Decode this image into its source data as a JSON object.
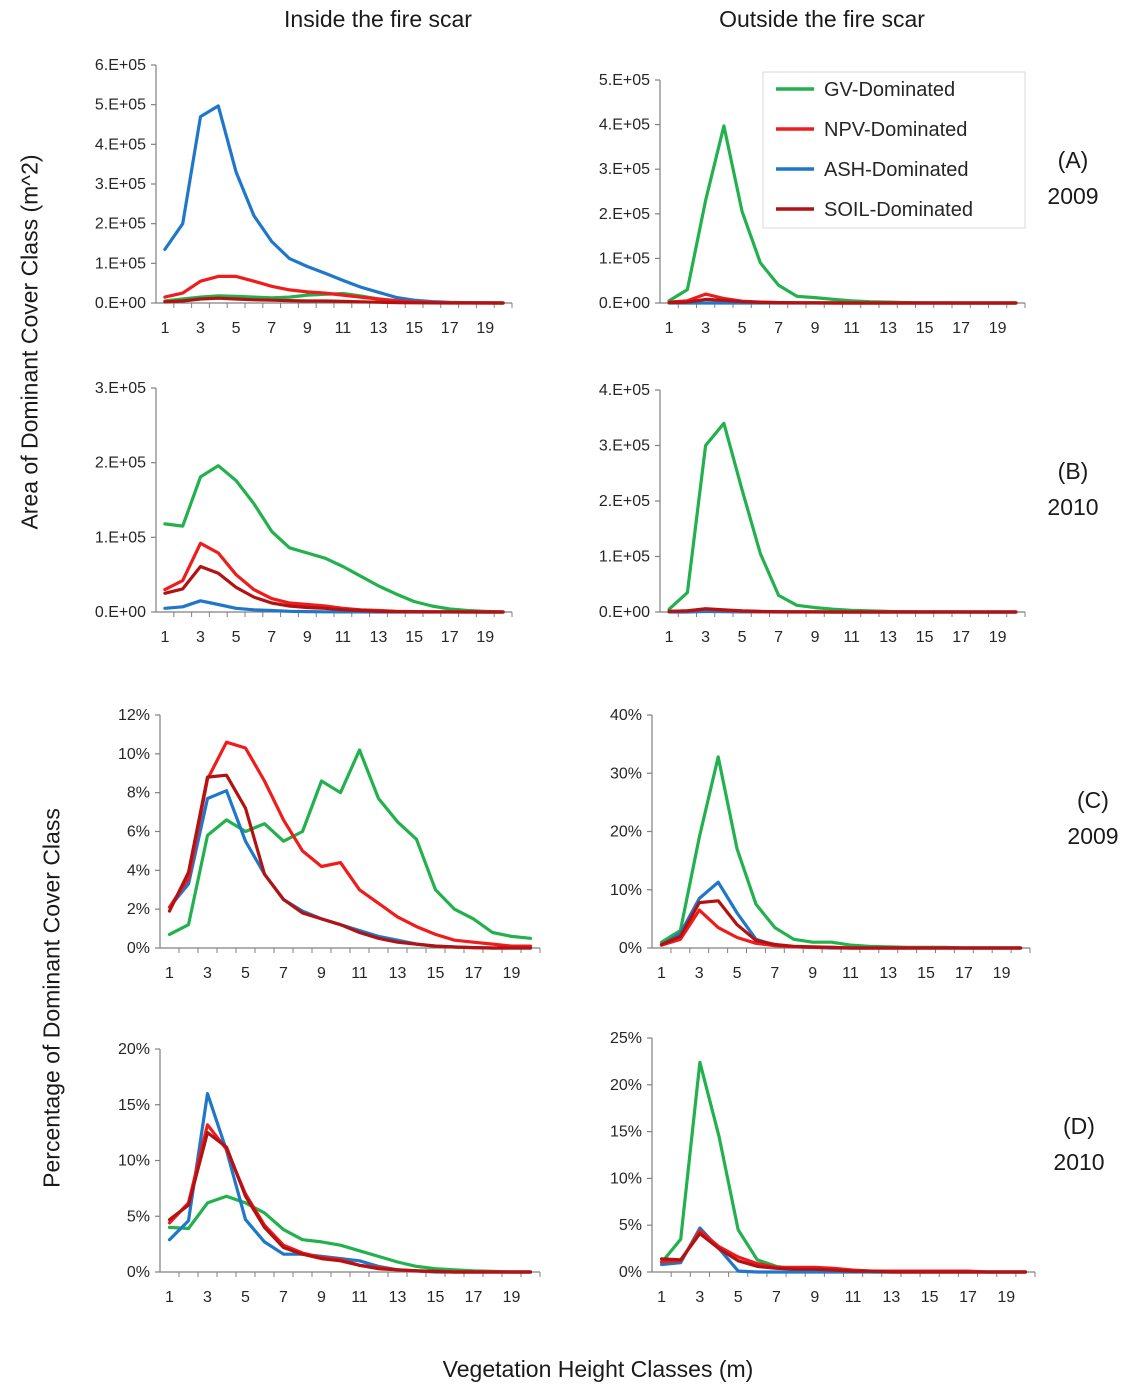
{
  "column_titles": {
    "inside": "Inside the fire scar",
    "outside": "Outside the fire scar"
  },
  "y_titles": {
    "area": "Area of Dominant Cover Class (m^2)",
    "percent": "Percentage of Dominant Cover Class"
  },
  "x_title": "Vegetation Height Classes (m)",
  "row_labels": [
    {
      "letter": "(A)",
      "year": "2009"
    },
    {
      "letter": "(B)",
      "year": "2010"
    },
    {
      "letter": "(C)",
      "year": "2009"
    },
    {
      "letter": "(D)",
      "year": "2010"
    }
  ],
  "legend": [
    {
      "name": "GV-Dominated",
      "color": "#22b14c"
    },
    {
      "name": "NPV-Dominated",
      "color": "#f01c1c"
    },
    {
      "name": "ASH-Dominated",
      "color": "#1f77c9"
    },
    {
      "name": "SOIL-Dominated",
      "color": "#b31212"
    }
  ],
  "chart_data": [
    {
      "type": "line",
      "panel": "A-inside",
      "x": [
        1,
        2,
        3,
        4,
        5,
        6,
        7,
        8,
        9,
        10,
        11,
        12,
        13,
        14,
        15,
        16,
        17,
        18,
        19,
        20
      ],
      "x_tick_labels": [
        "1",
        "3",
        "5",
        "7",
        "9",
        "11",
        "13",
        "15",
        "17",
        "19"
      ],
      "y_tick_labels": [
        "0.E+00",
        "1.E+05",
        "2.E+05",
        "3.E+05",
        "4.E+05",
        "5.E+05",
        "6.E+05"
      ],
      "ylim": [
        0,
        600000
      ],
      "series": [
        {
          "name": "GV-Dominated",
          "values": [
            5000,
            10000,
            15000,
            18000,
            17000,
            15000,
            13000,
            15000,
            20000,
            22000,
            24000,
            18000,
            10000,
            5000,
            2000,
            1000,
            500,
            200,
            100,
            0
          ]
        },
        {
          "name": "NPV-Dominated",
          "values": [
            15000,
            25000,
            55000,
            67000,
            67000,
            55000,
            42000,
            33000,
            28000,
            25000,
            20000,
            15000,
            10000,
            6000,
            3000,
            1500,
            800,
            400,
            200,
            0
          ]
        },
        {
          "name": "ASH-Dominated",
          "values": [
            135000,
            200000,
            470000,
            497000,
            330000,
            220000,
            155000,
            112000,
            92000,
            75000,
            57000,
            40000,
            27000,
            14000,
            7000,
            3500,
            1500,
            700,
            300,
            0
          ]
        },
        {
          "name": "SOIL-Dominated",
          "values": [
            3000,
            5000,
            10000,
            12000,
            10000,
            8000,
            7000,
            6000,
            5000,
            5000,
            4000,
            3000,
            2000,
            1000,
            500,
            300,
            100,
            0,
            0,
            0
          ]
        }
      ]
    },
    {
      "type": "line",
      "panel": "A-outside",
      "x": [
        1,
        2,
        3,
        4,
        5,
        6,
        7,
        8,
        9,
        10,
        11,
        12,
        13,
        14,
        15,
        16,
        17,
        18,
        19,
        20
      ],
      "x_tick_labels": [
        "1",
        "3",
        "5",
        "7",
        "9",
        "11",
        "13",
        "15",
        "17",
        "19"
      ],
      "y_tick_labels": [
        "0.E+00",
        "1.E+05",
        "2.E+05",
        "3.E+05",
        "4.E+05",
        "5.E+05"
      ],
      "ylim": [
        0,
        500000
      ],
      "series": [
        {
          "name": "GV-Dominated",
          "values": [
            5000,
            30000,
            230000,
            397000,
            205000,
            90000,
            40000,
            15000,
            12000,
            8000,
            5000,
            3000,
            2000,
            1000,
            500,
            300,
            100,
            0,
            0,
            0
          ]
        },
        {
          "name": "NPV-Dominated",
          "values": [
            2000,
            5000,
            20000,
            10000,
            4000,
            2000,
            1000,
            500,
            300,
            200,
            100,
            0,
            0,
            0,
            0,
            0,
            0,
            0,
            0,
            0
          ]
        },
        {
          "name": "ASH-Dominated",
          "values": [
            0,
            0,
            0,
            0,
            0,
            0,
            0,
            0,
            0,
            0,
            0,
            0,
            0,
            0,
            0,
            0,
            0,
            0,
            0,
            0
          ]
        },
        {
          "name": "SOIL-Dominated",
          "values": [
            1000,
            2000,
            8000,
            6000,
            3000,
            1500,
            800,
            400,
            200,
            100,
            0,
            0,
            0,
            0,
            0,
            0,
            0,
            0,
            0,
            0
          ]
        }
      ]
    },
    {
      "type": "line",
      "panel": "B-inside",
      "x": [
        1,
        2,
        3,
        4,
        5,
        6,
        7,
        8,
        9,
        10,
        11,
        12,
        13,
        14,
        15,
        16,
        17,
        18,
        19,
        20
      ],
      "x_tick_labels": [
        "1",
        "3",
        "5",
        "7",
        "9",
        "11",
        "13",
        "15",
        "17",
        "19"
      ],
      "y_tick_labels": [
        "0.E+00",
        "1.E+05",
        "2.E+05",
        "3.E+05"
      ],
      "ylim": [
        0,
        300000
      ],
      "series": [
        {
          "name": "GV-Dominated",
          "values": [
            118000,
            115000,
            181000,
            196000,
            176000,
            145000,
            108000,
            86000,
            79000,
            72000,
            61000,
            48000,
            35000,
            24000,
            14000,
            8000,
            4000,
            2000,
            1000,
            0
          ]
        },
        {
          "name": "NPV-Dominated",
          "values": [
            30000,
            42000,
            92000,
            79000,
            50000,
            30000,
            18000,
            12000,
            10000,
            8000,
            5000,
            3000,
            2000,
            1000,
            500,
            300,
            200,
            100,
            0,
            0
          ]
        },
        {
          "name": "ASH-Dominated",
          "values": [
            5000,
            7000,
            15000,
            10000,
            5000,
            3000,
            2000,
            1000,
            500,
            300,
            200,
            100,
            0,
            0,
            0,
            0,
            0,
            0,
            0,
            0
          ]
        },
        {
          "name": "SOIL-Dominated",
          "values": [
            25000,
            31000,
            61000,
            52000,
            33000,
            20000,
            12000,
            8000,
            6000,
            5000,
            3000,
            2000,
            1000,
            500,
            300,
            200,
            100,
            0,
            0,
            0
          ]
        }
      ]
    },
    {
      "type": "line",
      "panel": "B-outside",
      "x": [
        1,
        2,
        3,
        4,
        5,
        6,
        7,
        8,
        9,
        10,
        11,
        12,
        13,
        14,
        15,
        16,
        17,
        18,
        19,
        20
      ],
      "x_tick_labels": [
        "1",
        "3",
        "5",
        "7",
        "9",
        "11",
        "13",
        "15",
        "17",
        "19"
      ],
      "y_tick_labels": [
        "0.E+00",
        "1.E+05",
        "2.E+05",
        "3.E+05",
        "4.E+05"
      ],
      "ylim": [
        0,
        400000
      ],
      "series": [
        {
          "name": "GV-Dominated",
          "values": [
            5000,
            35000,
            300000,
            340000,
            220000,
            105000,
            30000,
            12000,
            8000,
            5000,
            3000,
            2000,
            1000,
            500,
            300,
            200,
            100,
            0,
            0,
            0
          ]
        },
        {
          "name": "NPV-Dominated",
          "values": [
            1000,
            2000,
            5000,
            3000,
            1500,
            800,
            400,
            200,
            100,
            0,
            0,
            0,
            0,
            0,
            0,
            0,
            0,
            0,
            0,
            0
          ]
        },
        {
          "name": "ASH-Dominated",
          "values": [
            0,
            0,
            1000,
            500,
            200,
            100,
            0,
            0,
            0,
            0,
            0,
            0,
            0,
            0,
            0,
            0,
            0,
            0,
            0,
            0
          ]
        },
        {
          "name": "SOIL-Dominated",
          "values": [
            1000,
            2000,
            6000,
            4000,
            2000,
            1000,
            500,
            200,
            100,
            0,
            0,
            0,
            0,
            0,
            0,
            0,
            0,
            0,
            0,
            0
          ]
        }
      ]
    },
    {
      "type": "line",
      "panel": "C-inside",
      "x": [
        1,
        2,
        3,
        4,
        5,
        6,
        7,
        8,
        9,
        10,
        11,
        12,
        13,
        14,
        15,
        16,
        17,
        18,
        19,
        20
      ],
      "x_tick_labels": [
        "1",
        "3",
        "5",
        "7",
        "9",
        "11",
        "13",
        "15",
        "17",
        "19"
      ],
      "y_tick_labels": [
        "0%",
        "2%",
        "4%",
        "6%",
        "8%",
        "10%",
        "12%"
      ],
      "ylim": [
        0,
        12
      ],
      "series": [
        {
          "name": "GV-Dominated",
          "values": [
            0.7,
            1.2,
            5.8,
            6.6,
            6.0,
            6.4,
            5.5,
            6.0,
            8.6,
            8.0,
            10.2,
            7.7,
            6.5,
            5.6,
            3.0,
            2.0,
            1.5,
            0.8,
            0.6,
            0.5
          ]
        },
        {
          "name": "NPV-Dominated",
          "values": [
            2.1,
            3.6,
            8.7,
            10.6,
            10.3,
            8.6,
            6.6,
            5.0,
            4.2,
            4.4,
            3.0,
            2.3,
            1.6,
            1.1,
            0.7,
            0.4,
            0.3,
            0.2,
            0.1,
            0.1
          ]
        },
        {
          "name": "ASH-Dominated",
          "values": [
            2.1,
            3.3,
            7.7,
            8.1,
            5.5,
            3.8,
            2.5,
            1.9,
            1.5,
            1.2,
            0.9,
            0.6,
            0.4,
            0.2,
            0.1,
            0.05,
            0.02,
            0,
            0,
            0
          ]
        },
        {
          "name": "SOIL-Dominated",
          "values": [
            1.9,
            3.9,
            8.8,
            8.9,
            7.2,
            3.8,
            2.5,
            1.8,
            1.5,
            1.2,
            0.8,
            0.5,
            0.3,
            0.2,
            0.1,
            0.05,
            0.02,
            0,
            0,
            0
          ]
        }
      ]
    },
    {
      "type": "line",
      "panel": "C-outside",
      "x": [
        1,
        2,
        3,
        4,
        5,
        6,
        7,
        8,
        9,
        10,
        11,
        12,
        13,
        14,
        15,
        16,
        17,
        18,
        19,
        20
      ],
      "x_tick_labels": [
        "1",
        "3",
        "5",
        "7",
        "9",
        "11",
        "13",
        "15",
        "17",
        "19"
      ],
      "y_tick_labels": [
        "0%",
        "10%",
        "20%",
        "30%",
        "40%"
      ],
      "ylim": [
        0,
        40
      ],
      "series": [
        {
          "name": "GV-Dominated",
          "values": [
            1.0,
            3.0,
            19.0,
            32.8,
            17.0,
            7.5,
            3.5,
            1.5,
            1.0,
            1.0,
            0.5,
            0.3,
            0.2,
            0.1,
            0.1,
            0.1,
            0,
            0,
            0,
            0
          ]
        },
        {
          "name": "NPV-Dominated",
          "values": [
            0.5,
            1.5,
            6.5,
            3.5,
            1.8,
            0.8,
            0.4,
            0.2,
            0.1,
            0.1,
            0,
            0,
            0,
            0,
            0,
            0,
            0,
            0,
            0,
            0
          ]
        },
        {
          "name": "ASH-Dominated",
          "values": [
            0.5,
            2.5,
            8.5,
            11.3,
            6.0,
            1.5,
            0.5,
            0.2,
            0.1,
            0,
            0,
            0,
            0,
            0,
            0,
            0,
            0,
            0,
            0,
            0
          ]
        },
        {
          "name": "SOIL-Dominated",
          "values": [
            0.6,
            2.0,
            7.8,
            8.1,
            4.0,
            1.3,
            0.6,
            0.3,
            0.2,
            0.1,
            0,
            0,
            0,
            0,
            0,
            0,
            0,
            0,
            0,
            0
          ]
        }
      ]
    },
    {
      "type": "line",
      "panel": "D-inside",
      "x": [
        1,
        2,
        3,
        4,
        5,
        6,
        7,
        8,
        9,
        10,
        11,
        12,
        13,
        14,
        15,
        16,
        17,
        18,
        19,
        20
      ],
      "x_tick_labels": [
        "1",
        "3",
        "5",
        "7",
        "9",
        "11",
        "13",
        "15",
        "17",
        "19"
      ],
      "y_tick_labels": [
        "0%",
        "5%",
        "10%",
        "15%",
        "20%"
      ],
      "ylim": [
        0,
        20
      ],
      "series": [
        {
          "name": "GV-Dominated",
          "values": [
            4.0,
            3.9,
            6.2,
            6.8,
            6.2,
            5.3,
            3.8,
            2.9,
            2.7,
            2.4,
            1.9,
            1.4,
            0.9,
            0.5,
            0.3,
            0.2,
            0.1,
            0.05,
            0,
            0
          ]
        },
        {
          "name": "NPV-Dominated",
          "values": [
            4.4,
            6.2,
            13.2,
            11.0,
            7.0,
            4.2,
            2.4,
            1.7,
            1.3,
            1.1,
            0.6,
            0.4,
            0.2,
            0.1,
            0.05,
            0,
            0,
            0,
            0,
            0
          ]
        },
        {
          "name": "ASH-Dominated",
          "values": [
            2.9,
            4.6,
            16.0,
            10.9,
            4.7,
            2.7,
            1.6,
            1.6,
            1.4,
            1.2,
            1.0,
            0.5,
            0.2,
            0.1,
            0,
            0,
            0,
            0,
            0,
            0
          ]
        },
        {
          "name": "SOIL-Dominated",
          "values": [
            4.7,
            6.0,
            12.5,
            11.2,
            6.8,
            4.0,
            2.2,
            1.6,
            1.2,
            1.0,
            0.6,
            0.3,
            0.2,
            0.1,
            0.05,
            0,
            0,
            0,
            0,
            0
          ]
        }
      ]
    },
    {
      "type": "line",
      "panel": "D-outside",
      "x": [
        1,
        2,
        3,
        4,
        5,
        6,
        7,
        8,
        9,
        10,
        11,
        12,
        13,
        14,
        15,
        16,
        17,
        18,
        19,
        20
      ],
      "x_tick_labels": [
        "1",
        "3",
        "5",
        "7",
        "9",
        "11",
        "13",
        "15",
        "17",
        "19"
      ],
      "y_tick_labels": [
        "0%",
        "5%",
        "10%",
        "15%",
        "20%",
        "25%"
      ],
      "ylim": [
        0,
        25
      ],
      "series": [
        {
          "name": "GV-Dominated",
          "values": [
            1.0,
            3.5,
            22.4,
            14.5,
            4.5,
            1.3,
            0.6,
            0.3,
            0.2,
            0.1,
            0.1,
            0,
            0,
            0,
            0,
            0,
            0,
            0,
            0,
            0
          ]
        },
        {
          "name": "NPV-Dominated",
          "values": [
            1.1,
            1.2,
            4.4,
            2.7,
            1.6,
            0.9,
            0.5,
            0.5,
            0.5,
            0.4,
            0.2,
            0.1,
            0.1,
            0.1,
            0.1,
            0.1,
            0.1,
            0,
            0,
            0
          ]
        },
        {
          "name": "ASH-Dominated",
          "values": [
            0.8,
            1.0,
            4.7,
            2.5,
            0.1,
            0,
            0,
            0,
            0,
            0,
            0,
            0,
            0,
            0,
            0,
            0,
            0,
            0,
            0,
            0
          ]
        },
        {
          "name": "SOIL-Dominated",
          "values": [
            1.4,
            1.3,
            4.1,
            2.5,
            1.2,
            0.6,
            0.4,
            0.3,
            0.3,
            0.2,
            0.1,
            0.1,
            0,
            0,
            0,
            0,
            0,
            0,
            0,
            0
          ]
        }
      ]
    }
  ]
}
